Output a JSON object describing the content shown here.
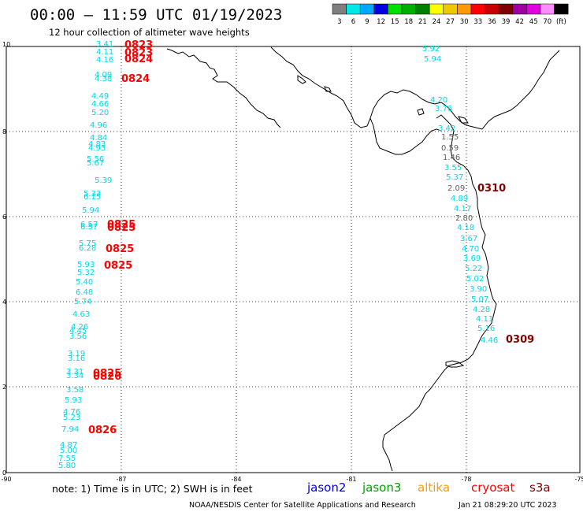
{
  "header": {
    "title": "00:00 – 11:59 UTC 01/19/2023",
    "subtitle": "12 hour collection of altimeter wave heights"
  },
  "scale": {
    "labels": [
      "3",
      "6",
      "9",
      "12",
      "15",
      "18",
      "21",
      "24",
      "27",
      "30",
      "33",
      "36",
      "39",
      "42",
      "45",
      "70",
      "(ft)"
    ],
    "colors": [
      "#7f7f7f",
      "#00e8e8",
      "#00a8ff",
      "#0000e0",
      "#00e000",
      "#00b000",
      "#008000",
      "#ffff00",
      "#f0c800",
      "#ff9900",
      "#ff0000",
      "#c80000",
      "#800000",
      "#a000a0",
      "#e000e0",
      "#ff8cff",
      "#000000"
    ]
  },
  "axes": {
    "x_ticks": [
      "-90",
      "-87",
      "-84",
      "-81",
      "-78",
      "-75"
    ],
    "y_ticks": [
      "10",
      "8",
      "6",
      "4",
      "2",
      "0"
    ]
  },
  "west_track": {
    "heights": [
      "3.41",
      "4.11",
      "4.16",
      "4.09",
      "4.38",
      "4.49",
      "4.66",
      "5.20",
      "4.96",
      "4.84",
      "4.83",
      "4.93",
      "5.56",
      "5.67",
      "5.39",
      "5.33",
      "6.15",
      "5.94",
      "6.57",
      "6.57",
      "5.75",
      "6.28",
      "5.93",
      "5.32",
      "5.40",
      "6.48",
      "5.74",
      "4.63",
      "4.26",
      "4.45",
      "3.56",
      "3.19",
      "3.16",
      "3.31",
      "3.34",
      "3.58",
      "5.93",
      "4.76",
      "5.23",
      "7.94",
      "4.87",
      "5.00",
      "7.55",
      "5.80"
    ],
    "times": [
      "0823",
      "0823",
      "0824",
      "0824",
      "0825",
      "0825",
      "0825",
      "0825",
      "0825",
      "0826",
      "0826"
    ]
  },
  "east_track": {
    "heights_left": [
      "5.92",
      "5.94",
      "4.20",
      "3.76",
      "3.42",
      "1.55",
      "0.59",
      "1.46",
      "3.55",
      "5.37",
      "2.09",
      "4.89",
      "4.17",
      "2.80",
      "4.18",
      "3.67",
      "4.70",
      "3.69",
      "5.22",
      "5.02",
      "3.90",
      "5.07",
      "4.28",
      "4.11",
      "5.16",
      "4.46"
    ],
    "times": [
      "0310",
      "0309"
    ]
  },
  "legend": {
    "note": "note: 1) Time is in UTC; 2) SWH is in feet",
    "satellites": [
      {
        "name": "jason2",
        "color": "#0000e0"
      },
      {
        "name": "jason3",
        "color": "#00a000"
      },
      {
        "name": "altika",
        "color": "#ff9900"
      },
      {
        "name": "cryosat",
        "color": "#ff0000"
      },
      {
        "name": "s3a",
        "color": "#800000"
      }
    ]
  },
  "footer": {
    "credit": "NOAA/NESDIS Center for Satellite Applications and Research",
    "timestamp": "Jan 21 08:29:20 UTC 2023"
  }
}
